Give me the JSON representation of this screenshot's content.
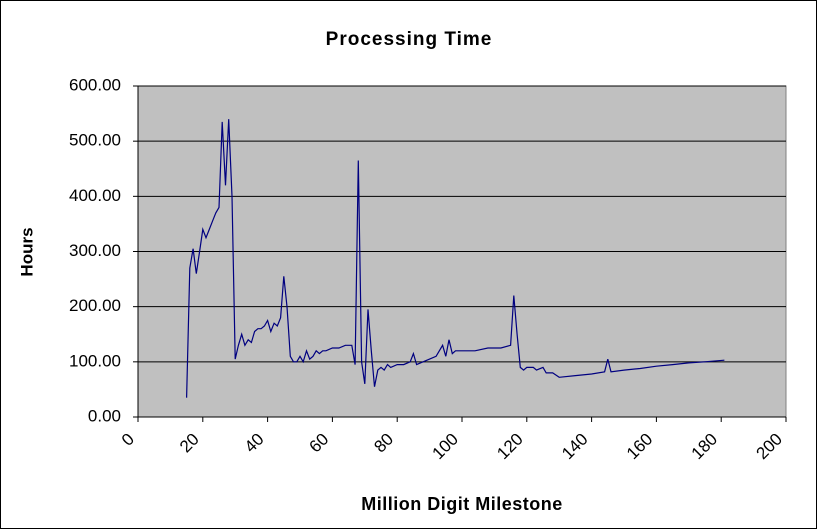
{
  "chart_data": {
    "type": "line",
    "title": "Processing Time",
    "x_label": "Million Digit Milestone",
    "y_label": "Hours",
    "x": [
      15,
      16,
      17,
      18,
      19,
      20,
      21,
      22,
      23,
      24,
      25,
      26,
      27,
      28,
      29,
      30,
      31,
      32,
      33,
      34,
      35,
      36,
      37,
      38,
      39,
      40,
      41,
      42,
      43,
      44,
      45,
      46,
      47,
      48,
      49,
      50,
      51,
      52,
      53,
      54,
      55,
      56,
      57,
      58,
      60,
      62,
      64,
      66,
      67,
      68,
      69,
      70,
      71,
      72,
      73,
      74,
      75,
      76,
      77,
      78,
      80,
      82,
      84,
      85,
      86,
      88,
      90,
      92,
      94,
      95,
      96,
      97,
      98,
      100,
      104,
      108,
      112,
      115,
      116,
      117,
      118,
      119,
      120,
      122,
      123,
      125,
      126,
      128,
      130,
      135,
      140,
      144,
      145,
      146,
      150,
      155,
      160,
      165,
      170,
      175,
      181
    ],
    "values": [
      35,
      270,
      305,
      260,
      300,
      340,
      325,
      340,
      355,
      370,
      380,
      535,
      420,
      540,
      400,
      105,
      130,
      150,
      130,
      140,
      135,
      155,
      160,
      160,
      165,
      175,
      155,
      170,
      165,
      180,
      255,
      200,
      110,
      100,
      100,
      110,
      100,
      120,
      105,
      110,
      120,
      115,
      120,
      120,
      125,
      125,
      130,
      130,
      95,
      465,
      100,
      60,
      195,
      120,
      55,
      85,
      90,
      85,
      95,
      90,
      95,
      95,
      100,
      115,
      95,
      100,
      105,
      110,
      130,
      110,
      140,
      115,
      120,
      120,
      120,
      125,
      125,
      130,
      220,
      150,
      90,
      85,
      90,
      90,
      85,
      90,
      80,
      80,
      72,
      75,
      78,
      82,
      105,
      82,
      85,
      88,
      92,
      95,
      98,
      100,
      103
    ],
    "color": "#000080",
    "xlim": [
      0,
      200
    ],
    "xticks": [
      0,
      20,
      40,
      60,
      80,
      100,
      120,
      140,
      160,
      180,
      200
    ],
    "ylim": [
      0,
      600
    ],
    "yticks": [
      {
        "value": 0,
        "label": "0.00"
      },
      {
        "value": 100,
        "label": "100.00"
      },
      {
        "value": 200,
        "label": "200.00"
      },
      {
        "value": 300,
        "label": "300.00"
      },
      {
        "value": 400,
        "label": "400.00"
      },
      {
        "value": 500,
        "label": "500.00"
      },
      {
        "value": 600,
        "label": "600.00"
      }
    ],
    "grid": true
  }
}
